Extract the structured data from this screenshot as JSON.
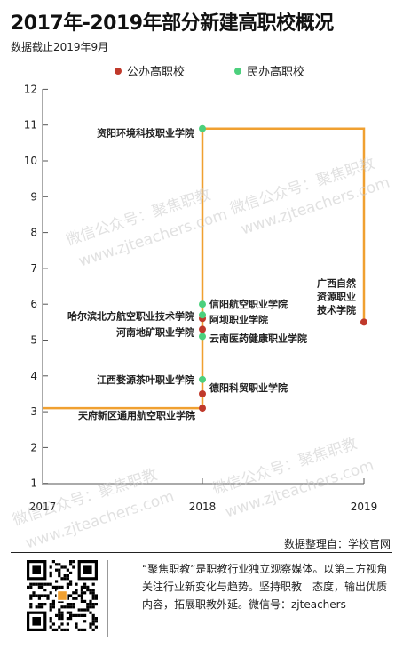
{
  "title": "2017年-2019年部分新建高职校概况",
  "subtitle": "数据截止2019年9月",
  "legend": [
    {
      "label": "公办高职校",
      "color": "#c0392b"
    },
    {
      "label": "民办高职校",
      "color": "#4cd07d"
    }
  ],
  "colors": {
    "line": "#f0a030",
    "public": "#c0392b",
    "private": "#4cd07d",
    "axis": "#555555"
  },
  "chart_data": {
    "type": "scatter",
    "title": "2017年-2019年部分新建高职校概况",
    "xlabel": "",
    "ylabel": "",
    "x_ticks": [
      "2017",
      "2018",
      "2019"
    ],
    "y_ticks": [
      "1",
      "2",
      "3",
      "4",
      "5",
      "6",
      "7",
      "8",
      "9",
      "10",
      "11",
      "12"
    ],
    "xlim": [
      2017,
      2019
    ],
    "ylim": [
      1,
      12
    ],
    "grid": false,
    "legend_position": "top",
    "series": [
      {
        "name": "公办高职校",
        "color": "#c0392b",
        "points": [
          {
            "x": 2018,
            "y": 3.1,
            "label": "天府新区通用航空职业学院"
          },
          {
            "x": 2018,
            "y": 3.5,
            "label": "德阳科贸职业学院"
          },
          {
            "x": 2018,
            "y": 5.3,
            "label": "河南地矿职业学院"
          },
          {
            "x": 2018,
            "y": 5.6,
            "label": "阿坝职业学院"
          },
          {
            "x": 2019,
            "y": 5.5,
            "label": "广西自然资源职业技术学院"
          }
        ]
      },
      {
        "name": "民办高职校",
        "color": "#4cd07d",
        "points": [
          {
            "x": 2018,
            "y": 3.9,
            "label": "江西婺源茶叶职业学院"
          },
          {
            "x": 2018,
            "y": 5.1,
            "label": "云南医药健康职业学院"
          },
          {
            "x": 2018,
            "y": 5.7,
            "label": "哈尔滨北方航空职业技术学院"
          },
          {
            "x": 2018,
            "y": 6.0,
            "label": "信阳航空职业学院"
          },
          {
            "x": 2018,
            "y": 10.9,
            "label": "资阳环境科技职业学院"
          }
        ]
      }
    ],
    "step_line": [
      [
        2017,
        3.1
      ],
      [
        2018,
        3.1
      ],
      [
        2018,
        10.9
      ],
      [
        2019,
        10.9
      ],
      [
        2019,
        5.5
      ]
    ]
  },
  "watermarks": [
    "微信公众号：聚焦职教",
    "www.zjteachers.com"
  ],
  "source": "数据整理自：学校官网",
  "footer": {
    "qr_label": "QR code",
    "text": "“聚焦职教”是职教行业独立观察媒体。以第三方视角关注行业新变化与趋势。坚持职教　态度，输出优质内容，拓展职教外延。微信号：zjteachers"
  }
}
